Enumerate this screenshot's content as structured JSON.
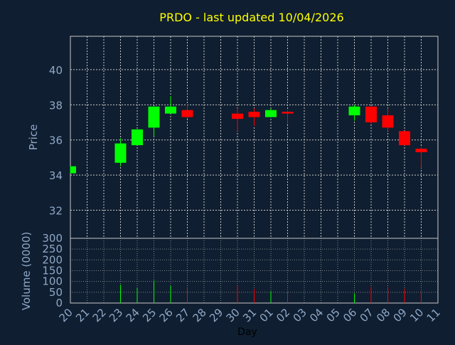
{
  "title": "PRDO - last updated 10/04/2026",
  "colors": {
    "background": "#0f1e30",
    "axis_text": "#8fa8c8",
    "title": "#ffff00",
    "up": "#00ff00",
    "down": "#ff0000",
    "grid": "#c8c8c8"
  },
  "chart_data": [
    {
      "type": "candlestick",
      "ylabel": "Price",
      "ylim": [
        30.4,
        41.9
      ],
      "yticks": [
        32,
        34,
        36,
        38,
        40
      ],
      "grid": true,
      "candles": [
        {
          "x": "20",
          "open": 34.1,
          "high": 34.5,
          "low": 34.1,
          "close": 34.5
        },
        {
          "x": "23",
          "open": 34.7,
          "high": 36.1,
          "low": 34.5,
          "close": 35.8
        },
        {
          "x": "24",
          "open": 35.7,
          "high": 36.6,
          "low": 35.7,
          "close": 36.6
        },
        {
          "x": "25",
          "open": 36.7,
          "high": 37.9,
          "low": 36.2,
          "close": 37.9
        },
        {
          "x": "26",
          "open": 37.5,
          "high": 38.5,
          "low": 37.5,
          "close": 37.9
        },
        {
          "x": "27",
          "open": 37.7,
          "high": 38.0,
          "low": 37.2,
          "close": 37.3
        },
        {
          "x": "30",
          "open": 37.5,
          "high": 37.8,
          "low": 36.5,
          "close": 37.2
        },
        {
          "x": "31",
          "open": 37.6,
          "high": 37.8,
          "low": 36.8,
          "close": 37.3
        },
        {
          "x": "01",
          "open": 37.3,
          "high": 37.8,
          "low": 37.3,
          "close": 37.7
        },
        {
          "x": "02",
          "open": 37.6,
          "high": 37.7,
          "low": 36.9,
          "close": 37.5
        },
        {
          "x": "06",
          "open": 37.4,
          "high": 38.0,
          "low": 37.1,
          "close": 37.9
        },
        {
          "x": "07",
          "open": 37.9,
          "high": 37.9,
          "low": 36.9,
          "close": 37.0
        },
        {
          "x": "08",
          "open": 37.4,
          "high": 37.8,
          "low": 36.5,
          "close": 36.7
        },
        {
          "x": "09",
          "open": 36.5,
          "high": 36.5,
          "low": 35.7,
          "close": 35.7
        },
        {
          "x": "10",
          "open": 35.5,
          "high": 35.6,
          "low": 34.4,
          "close": 35.3
        }
      ]
    },
    {
      "type": "bar",
      "xlabel": "Day",
      "ylabel": "Volume (0000)",
      "ylim": [
        0,
        300
      ],
      "yticks": [
        0,
        50,
        100,
        150,
        200,
        250,
        300
      ],
      "grid": true,
      "categories": [
        "20",
        "21",
        "22",
        "23",
        "24",
        "25",
        "26",
        "27",
        "28",
        "29",
        "30",
        "31",
        "01",
        "02",
        "03",
        "04",
        "05",
        "06",
        "07",
        "08",
        "09",
        "10",
        "11"
      ],
      "values": [
        null,
        null,
        null,
        85,
        70,
        105,
        80,
        75,
        null,
        null,
        80,
        65,
        55,
        50,
        null,
        null,
        null,
        45,
        75,
        75,
        65,
        55,
        null
      ]
    }
  ]
}
